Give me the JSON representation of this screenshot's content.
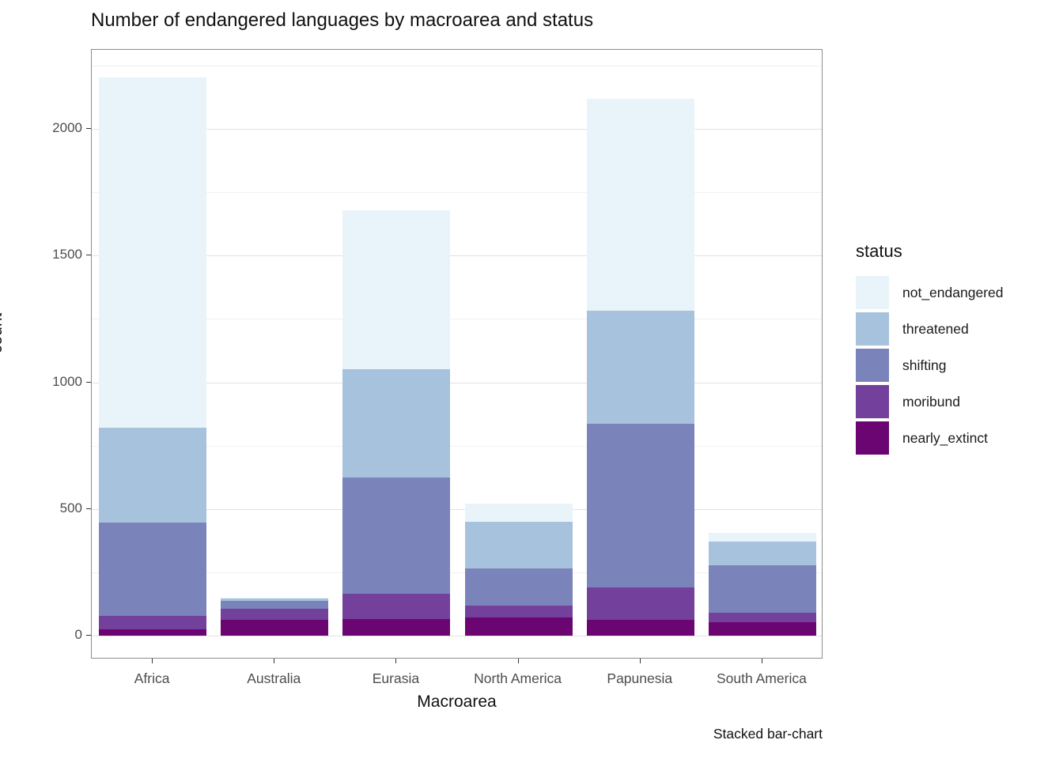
{
  "title": "Number of endangered languages by macroarea and status",
  "caption": "Stacked bar-chart",
  "axes": {
    "x_label": "Macroarea",
    "y_label": "count",
    "y_major_ticks": [
      0,
      500,
      1000,
      1500,
      2000
    ],
    "y_minor_ticks": [
      250,
      750,
      1250,
      1750,
      2250
    ]
  },
  "legend": {
    "title": "status",
    "items": [
      {
        "label": "not_endangered",
        "color": "#E8F4FA"
      },
      {
        "label": "threatened",
        "color": "#A6C2DD"
      },
      {
        "label": "shifting",
        "color": "#7A84BA"
      },
      {
        "label": "moribund",
        "color": "#73409B"
      },
      {
        "label": "nearly_extinct",
        "color": "#6A0572"
      }
    ]
  },
  "chart_data": {
    "type": "bar",
    "stacked": true,
    "title": "Number of endangered languages by macroarea and status",
    "xlabel": "Macroarea",
    "ylabel": "count",
    "ylim": [
      0,
      2312
    ],
    "grid": "major+minor",
    "legend_position": "right",
    "categories": [
      "Africa",
      "Australia",
      "Eurasia",
      "North America",
      "Papunesia",
      "South America"
    ],
    "series_stack_order_bottom_to_top": [
      {
        "name": "nearly_extinct",
        "color": "#6A0572",
        "values": [
          25,
          61,
          65,
          72,
          61,
          53
        ]
      },
      {
        "name": "moribund",
        "color": "#73409B",
        "values": [
          52,
          45,
          100,
          47,
          130,
          37
        ]
      },
      {
        "name": "shifting",
        "color": "#7A84BA",
        "values": [
          369,
          31,
          458,
          147,
          645,
          187
        ]
      },
      {
        "name": "threatened",
        "color": "#A6C2DD",
        "values": [
          374,
          10,
          427,
          182,
          447,
          93
        ]
      },
      {
        "name": "not_endangered",
        "color": "#E8F4FA",
        "values": [
          1384,
          3,
          630,
          72,
          837,
          37
        ]
      }
    ],
    "category_totals": [
      2204,
      150,
      1680,
      520,
      2120,
      407
    ]
  }
}
